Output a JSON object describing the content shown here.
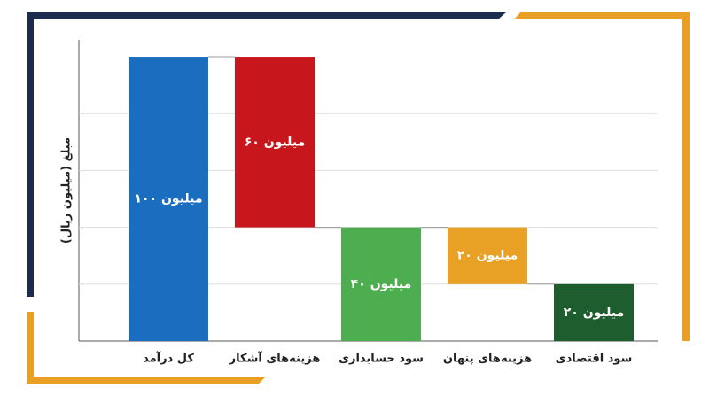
{
  "chart_data": {
    "type": "waterfall",
    "y_label": "مبلغ (میلیون ریال)",
    "categories": [
      "کل درآمد",
      "هزینه‌های آشکار",
      "سود حسابداری",
      "هزینه‌های پنهان",
      "سود اقتصادی"
    ],
    "values": [
      100,
      60,
      40,
      20,
      20
    ],
    "value_labels": [
      "۱۰۰ میلیون",
      "۶۰ میلیون",
      "۴۰ میلیون",
      "۲۰ میلیون",
      "۲۰ میلیون"
    ],
    "measure": [
      "total",
      "decrease",
      "total",
      "decrease",
      "total"
    ],
    "colors": [
      "#1b6ebf",
      "#c8161d",
      "#4cae4f",
      "#e8a025",
      "#1e5e2e"
    ],
    "ylim": [
      0,
      105
    ],
    "yticks": [
      20,
      40,
      60,
      80
    ],
    "grid": true
  }
}
